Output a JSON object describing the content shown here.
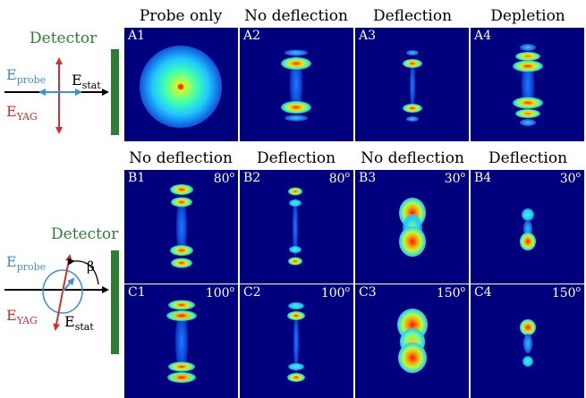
{
  "colors": {
    "detector": "#2e7d32",
    "probe": "#3b8de0",
    "yag": "#d32f2f",
    "panel_bg": "#00007f"
  },
  "row_a": {
    "headers": [
      "Probe only",
      "No deflection",
      "Deflection",
      "Depletion"
    ],
    "labels": [
      "A1",
      "A2",
      "A3",
      "A4"
    ]
  },
  "row_b": {
    "headers": [
      "No deflection",
      "Deflection",
      "No deflection",
      "Deflection"
    ],
    "labels": [
      "B1",
      "B2",
      "B3",
      "B4"
    ],
    "angles": [
      "80",
      "80",
      "30",
      "30"
    ]
  },
  "row_c": {
    "labels": [
      "C1",
      "C2",
      "C3",
      "C4"
    ],
    "angles": [
      "100",
      "100",
      "150",
      "150"
    ]
  },
  "angle_unit": "o",
  "diagram_top": {
    "detector_label": "Detector",
    "e_probe": "E",
    "e_probe_sub": "probe",
    "e_stat": "E",
    "e_stat_sub": "stat",
    "e_yag": "E",
    "e_yag_sub": "YAG"
  },
  "diagram_bottom": {
    "detector_label": "Detector",
    "e_probe": "E",
    "e_probe_sub": "probe",
    "e_stat": "E",
    "e_stat_sub": "stat",
    "e_yag": "E",
    "e_yag_sub": "YAG",
    "beta": "β"
  }
}
